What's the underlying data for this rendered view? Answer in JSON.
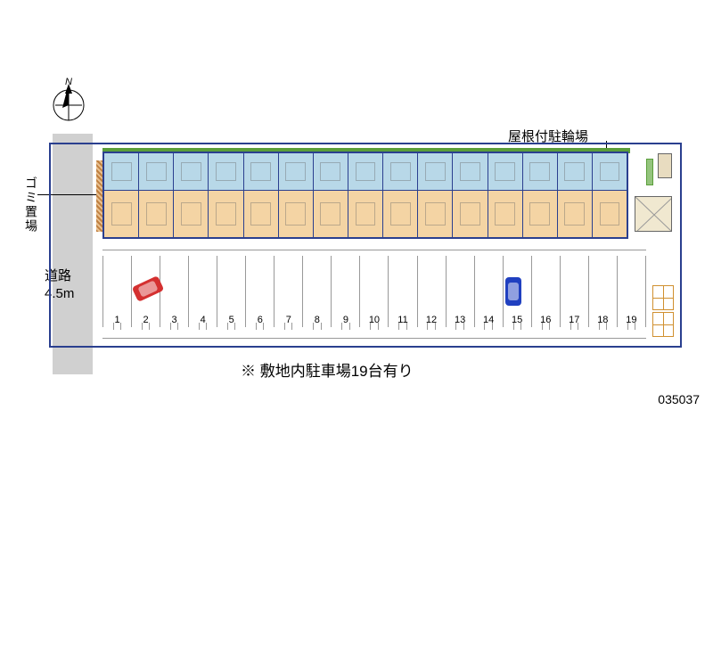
{
  "labels": {
    "garbage": "ゴミ置場",
    "road_name": "道路",
    "road_width": "4.5m",
    "bike_parking": "屋根付駐輪場",
    "caption": "※ 敷地内駐車場19台有り",
    "plan_id": "035037",
    "compass_n": "N"
  },
  "building": {
    "unit_count": 15,
    "upper_color": "#b8d8e8",
    "lower_color": "#f4d4a4",
    "border_color": "#2a3f8f",
    "green_strip_color": "#5a9e3a"
  },
  "parking": {
    "slot_count": 19,
    "slots": [
      1,
      2,
      3,
      4,
      5,
      6,
      7,
      8,
      9,
      10,
      11,
      12,
      13,
      14,
      15,
      16,
      17,
      18,
      19
    ],
    "line_color": "#999999"
  },
  "cars": [
    {
      "color": "#d43030",
      "slot_near": 2,
      "rotation": -25
    },
    {
      "color": "#2040c0",
      "slot_near": 15,
      "rotation": 90
    }
  ],
  "colors": {
    "road": "#d0d0d0",
    "outline": "#2a3f8f",
    "background": "#ffffff",
    "text": "#000000",
    "storage_border": "#d09030",
    "green_patch": "#94c47d"
  },
  "typography": {
    "label_fontsize": 15,
    "caption_fontsize": 17,
    "number_fontsize": 11
  }
}
